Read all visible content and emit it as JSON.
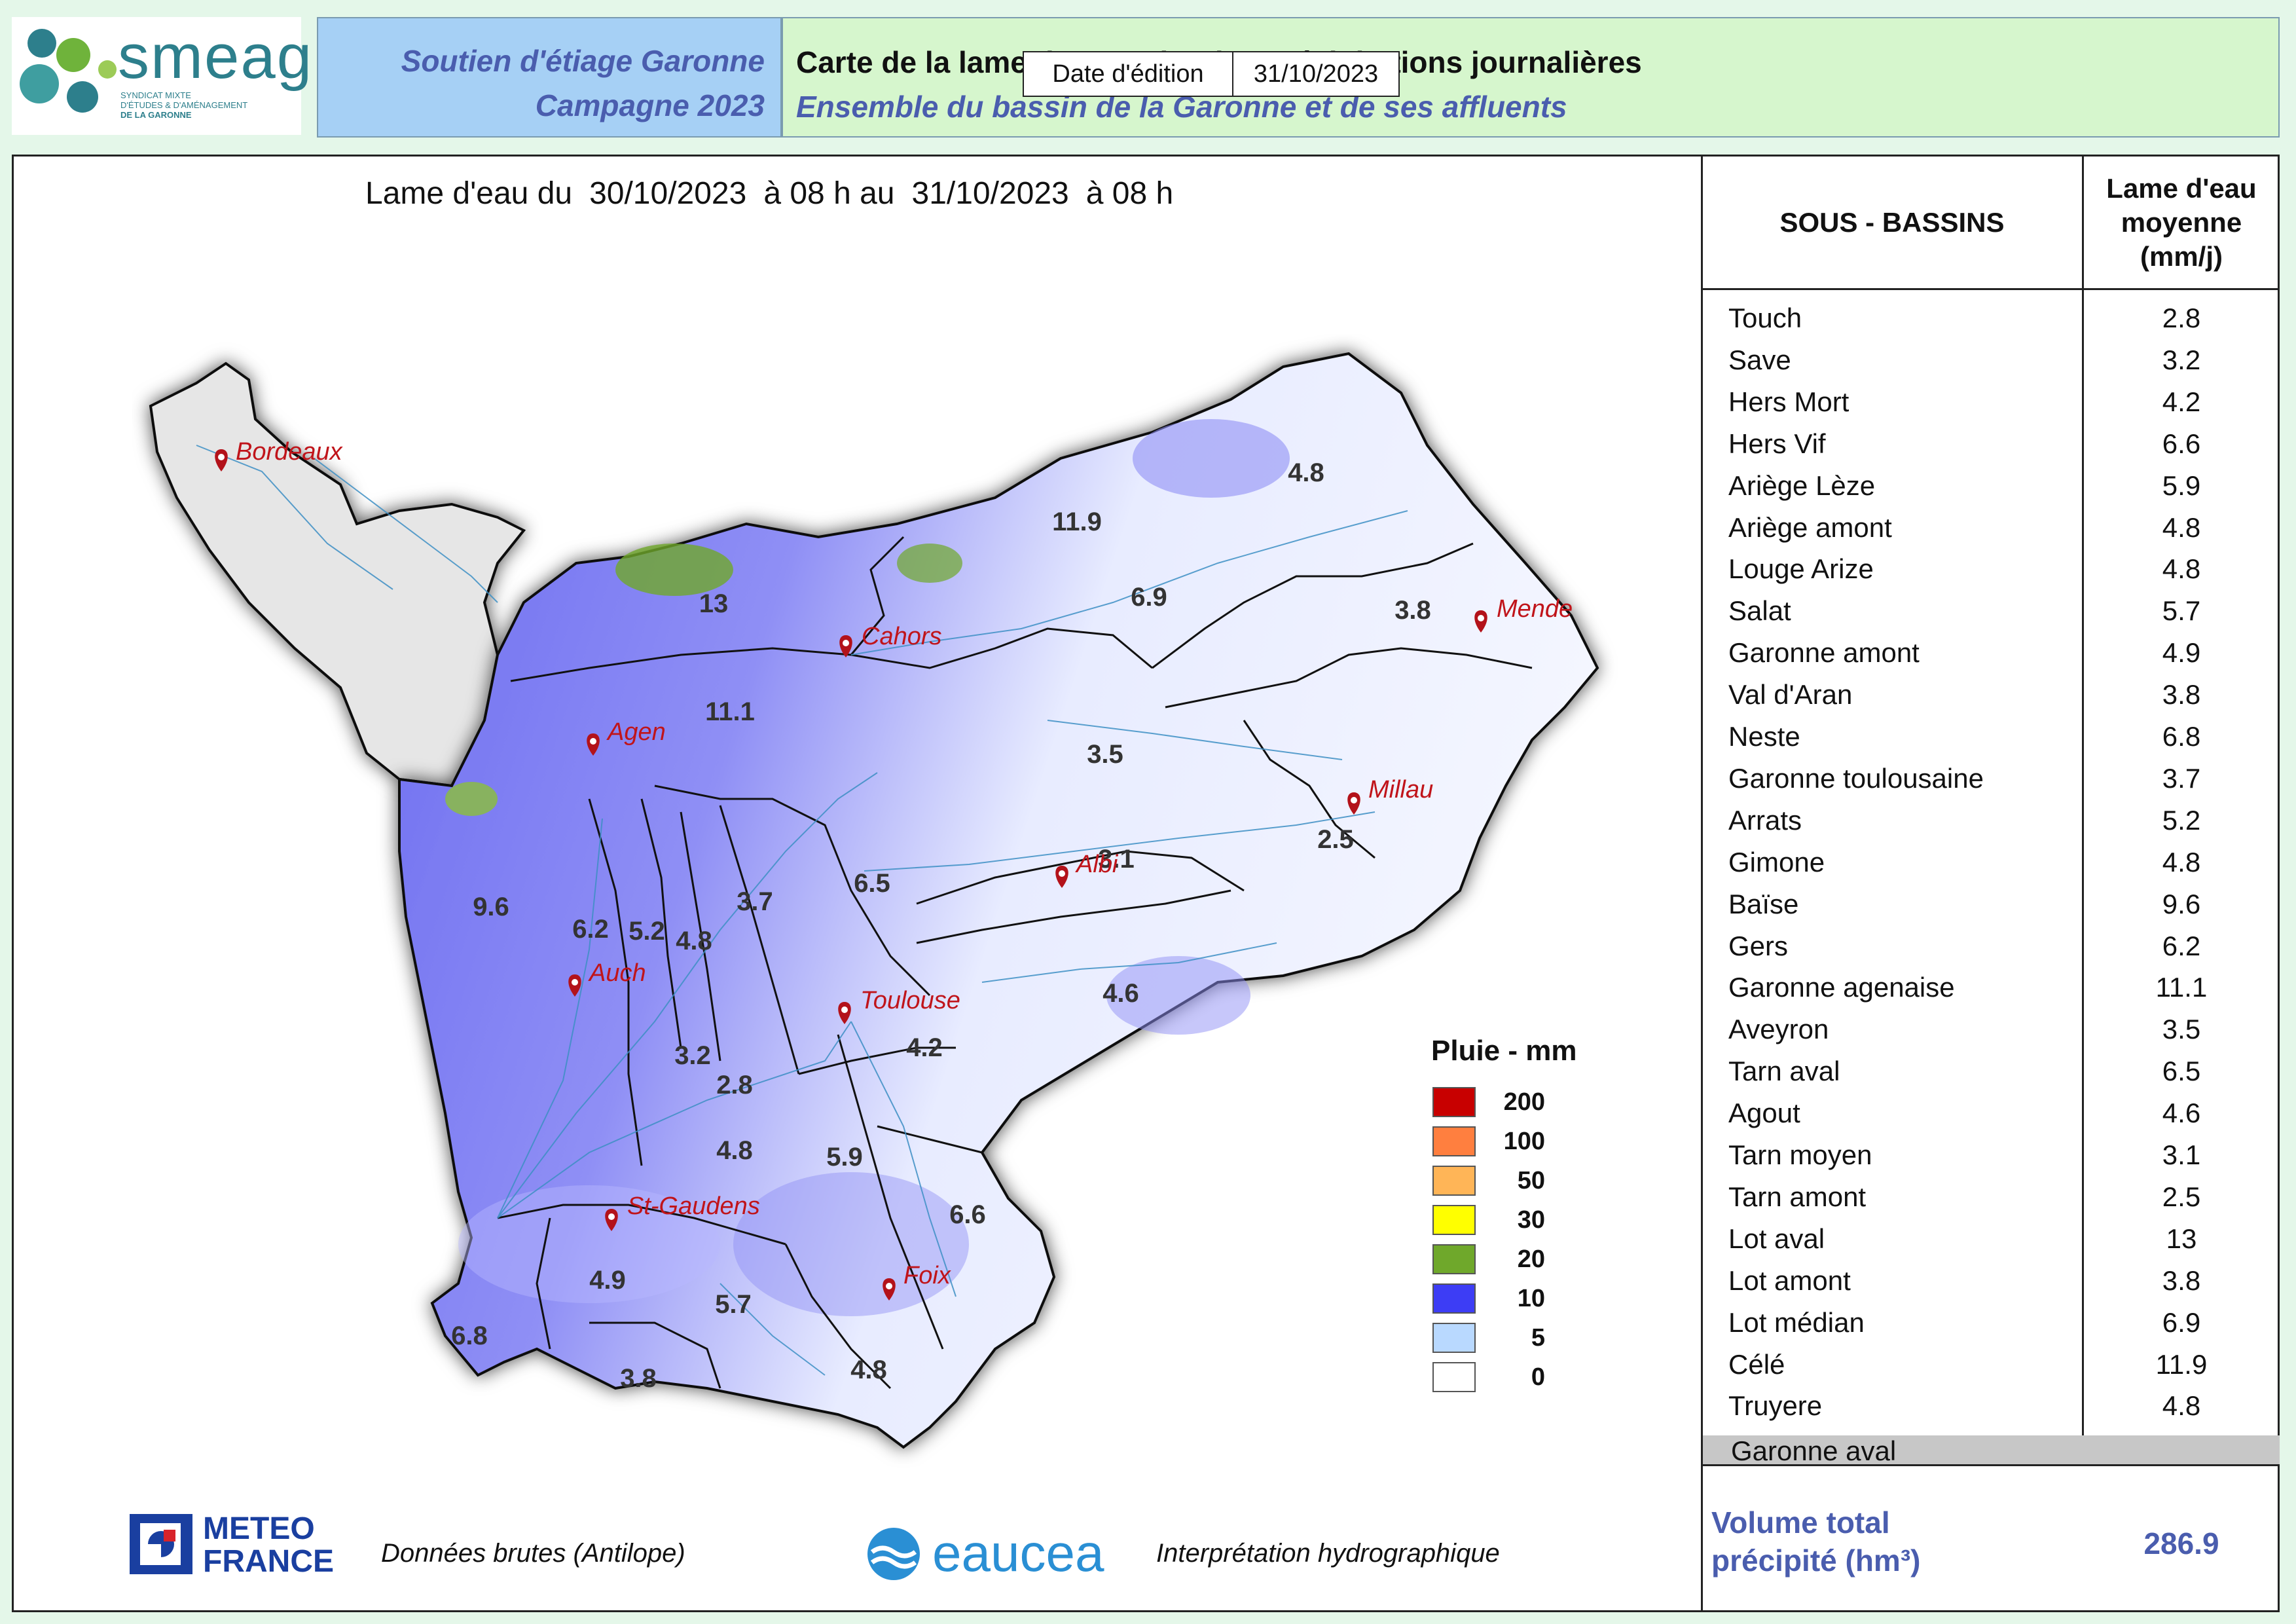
{
  "header": {
    "logo_name": "smeag",
    "logo_subtitle": [
      "SYNDICAT MIXTE",
      "D'ÉTUDES & D'AMÉNAGEMENT",
      "DE LA GARONNE"
    ],
    "campaign_line1": "Soutien d'étiage Garonne",
    "campaign_line2": "Campagne 2023",
    "title_line1": "Carte de la lame d'eau radar des précipitations journalières",
    "title_line2": "Ensemble du bassin de la Garonne et de ses affluents",
    "date_label": "Date d'édition",
    "date_value": "31/10/2023"
  },
  "period": {
    "prefix": "Lame d'eau du",
    "start_date": "30/10/2023",
    "start_time": "à 08 h au",
    "end_date": "31/10/2023",
    "end_time": "à 08 h"
  },
  "map": {
    "cities": [
      {
        "name": "Bordeaux"
      },
      {
        "name": "Cahors"
      },
      {
        "name": "Mende"
      },
      {
        "name": "Agen"
      },
      {
        "name": "Millau"
      },
      {
        "name": "Albi"
      },
      {
        "name": "Auch"
      },
      {
        "name": "Toulouse"
      },
      {
        "name": "St-Gaudens"
      },
      {
        "name": "Foix"
      }
    ],
    "basin_values": [
      "4.8",
      "11.9",
      "13",
      "6.9",
      "3.8",
      "11.1",
      "3.5",
      "2.5",
      "3.1",
      "6.5",
      "9.6",
      "6.2",
      "5.2",
      "4.8",
      "3.7",
      "4.6",
      "3.2",
      "4.2",
      "2.8",
      "4.8",
      "5.9",
      "6.6",
      "4.9",
      "5.7",
      "6.8",
      "3.8",
      "4.8"
    ]
  },
  "legend": {
    "title": "Pluie - mm",
    "items": [
      {
        "label": "200",
        "color": "#c80000"
      },
      {
        "label": "100",
        "color": "#ff7f3f"
      },
      {
        "label": "50",
        "color": "#ffb557"
      },
      {
        "label": "30",
        "color": "#ffff00"
      },
      {
        "label": "20",
        "color": "#6fa82b"
      },
      {
        "label": "10",
        "color": "#3d3df5"
      },
      {
        "label": "5",
        "color": "#b9d9ff"
      },
      {
        "label": "0",
        "color": "#ffffff"
      }
    ]
  },
  "table": {
    "col1_header": "SOUS - BASSINS",
    "col2_header": [
      "Lame d'eau",
      "moyenne",
      "(mm/j)"
    ],
    "rows": [
      {
        "name": "Touch",
        "value": "2.8"
      },
      {
        "name": "Save",
        "value": "3.2"
      },
      {
        "name": "Hers Mort",
        "value": "4.2"
      },
      {
        "name": "Hers Vif",
        "value": "6.6"
      },
      {
        "name": "Ariège Lèze",
        "value": "5.9"
      },
      {
        "name": "Ariège amont",
        "value": "4.8"
      },
      {
        "name": "Louge Arize",
        "value": "4.8"
      },
      {
        "name": "Salat",
        "value": "5.7"
      },
      {
        "name": "Garonne amont",
        "value": "4.9"
      },
      {
        "name": "Val d'Aran",
        "value": "3.8"
      },
      {
        "name": "Neste",
        "value": "6.8"
      },
      {
        "name": "Garonne toulousaine",
        "value": "3.7"
      },
      {
        "name": "Arrats",
        "value": "5.2"
      },
      {
        "name": "Gimone",
        "value": "4.8"
      },
      {
        "name": "Baïse",
        "value": "9.6"
      },
      {
        "name": "Gers",
        "value": "6.2"
      },
      {
        "name": "Garonne agenaise",
        "value": "11.1"
      },
      {
        "name": "Aveyron",
        "value": "3.5"
      },
      {
        "name": "Tarn aval",
        "value": "6.5"
      },
      {
        "name": "Agout",
        "value": "4.6"
      },
      {
        "name": "Tarn moyen",
        "value": "3.1"
      },
      {
        "name": "Tarn amont",
        "value": "2.5"
      },
      {
        "name": "Lot aval",
        "value": "13"
      },
      {
        "name": "Lot amont",
        "value": "3.8"
      },
      {
        "name": "Lot médian",
        "value": "6.9"
      },
      {
        "name": "Célé",
        "value": "11.9"
      },
      {
        "name": "Truyere",
        "value": "4.8"
      }
    ],
    "aval_name": "Garonne aval",
    "volume_label": [
      "Volume total",
      "précipité (hm³)"
    ],
    "volume_value": "286.9"
  },
  "footer": {
    "mf_line1": "METEO",
    "mf_line2": "FRANCE",
    "source_text": "Données brutes (Antilope)",
    "eaucea": "eaucea",
    "interp_text": "Interprétation hydrographique"
  }
}
